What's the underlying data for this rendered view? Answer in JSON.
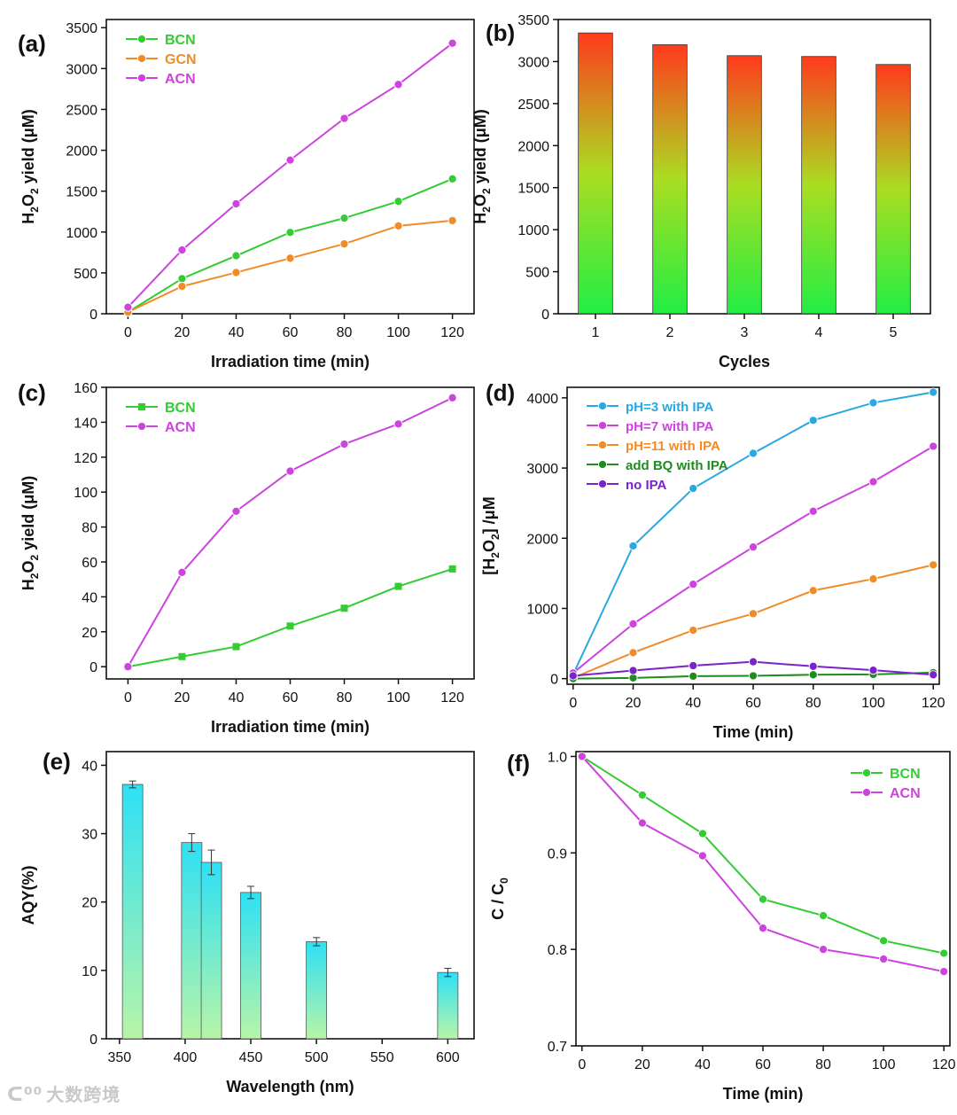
{
  "watermark": "大数跨境",
  "chart_data": [
    {
      "panel": "(a)",
      "type": "line",
      "xlabel": "Irradiation time (min)",
      "ylabel": "H2O2 yield (μM)",
      "xlim": [
        -8,
        128
      ],
      "ylim": [
        0,
        3600
      ],
      "xticks": [
        0,
        20,
        40,
        60,
        80,
        100,
        120
      ],
      "yticks": [
        0,
        500,
        1000,
        1500,
        2000,
        2500,
        3000,
        3500
      ],
      "legend": "top-left",
      "series": [
        {
          "name": "BCN",
          "color": "#33cc33",
          "marker": "circle",
          "x": [
            0,
            20,
            40,
            60,
            80,
            100,
            120
          ],
          "y": [
            20,
            430,
            710,
            995,
            1170,
            1375,
            1650
          ]
        },
        {
          "name": "GCN",
          "color": "#f08c28",
          "marker": "circle",
          "x": [
            0,
            20,
            40,
            60,
            80,
            100,
            120
          ],
          "y": [
            20,
            335,
            505,
            680,
            855,
            1075,
            1140
          ]
        },
        {
          "name": "ACN",
          "color": "#cc44dd",
          "marker": "circle",
          "x": [
            0,
            20,
            40,
            60,
            80,
            100,
            120
          ],
          "y": [
            80,
            780,
            1345,
            1880,
            2390,
            2805,
            3310
          ]
        }
      ]
    },
    {
      "panel": "(b)",
      "type": "bar",
      "xlabel": "Cycles",
      "ylabel": "H2O2 yield (μM)",
      "ylim": [
        0,
        3500
      ],
      "yticks": [
        0,
        500,
        1000,
        1500,
        2000,
        2500,
        3000,
        3500
      ],
      "categories": [
        "1",
        "2",
        "3",
        "4",
        "5"
      ],
      "values": [
        3340,
        3200,
        3070,
        3060,
        2965
      ],
      "gradient": [
        "#ff3a1c",
        "#aadd22",
        "#22ee44"
      ]
    },
    {
      "panel": "(c)",
      "type": "line",
      "xlabel": "Irradiation time (min)",
      "ylabel": "H2O2 yield (μM)",
      "xlim": [
        -8,
        128
      ],
      "ylim": [
        -7,
        160
      ],
      "xticks": [
        0,
        20,
        40,
        60,
        80,
        100,
        120
      ],
      "yticks": [
        0,
        20,
        40,
        60,
        80,
        100,
        120,
        140,
        160
      ],
      "legend": "top-left",
      "series": [
        {
          "name": "BCN",
          "color": "#33cc33",
          "marker": "square",
          "x": [
            0,
            20,
            40,
            60,
            80,
            100,
            120
          ],
          "y": [
            0,
            5.8,
            11.5,
            23.3,
            33.5,
            46,
            56
          ]
        },
        {
          "name": "ACN",
          "color": "#cc44dd",
          "marker": "circle",
          "x": [
            0,
            20,
            40,
            60,
            80,
            100,
            120
          ],
          "y": [
            0,
            54,
            89,
            112,
            127.5,
            139,
            154
          ]
        }
      ]
    },
    {
      "panel": "(d)",
      "type": "line",
      "xlabel": "Time (min)",
      "ylabel": "[H2O2] /μM",
      "xlim": [
        -2,
        122
      ],
      "ylim": [
        -80,
        4150
      ],
      "xticks": [
        0,
        20,
        40,
        60,
        80,
        100,
        120
      ],
      "yticks": [
        0,
        1000,
        2000,
        3000,
        4000
      ],
      "legend": "top-left",
      "series": [
        {
          "name": "pH=3 with IPA",
          "color": "#2aa8e0",
          "marker": "circle",
          "x": [
            0,
            20,
            40,
            60,
            80,
            100,
            120
          ],
          "y": [
            60,
            1890,
            2710,
            3210,
            3680,
            3930,
            4080
          ]
        },
        {
          "name": "pH=7 with IPA",
          "color": "#cc44dd",
          "marker": "circle",
          "x": [
            0,
            20,
            40,
            60,
            80,
            100,
            120
          ],
          "y": [
            80,
            780,
            1345,
            1875,
            2385,
            2805,
            3310
          ]
        },
        {
          "name": "pH=11 with IPA",
          "color": "#f08c28",
          "marker": "circle",
          "x": [
            0,
            20,
            40,
            60,
            80,
            100,
            120
          ],
          "y": [
            10,
            370,
            690,
            925,
            1255,
            1420,
            1620
          ]
        },
        {
          "name": "add BQ with IPA",
          "color": "#1e8c1e",
          "marker": "circle",
          "x": [
            0,
            20,
            40,
            60,
            80,
            100,
            120
          ],
          "y": [
            0,
            10,
            35,
            40,
            55,
            60,
            85
          ]
        },
        {
          "name": "no IPA",
          "color": "#7a22cc",
          "marker": "circle",
          "x": [
            0,
            20,
            40,
            60,
            80,
            100,
            120
          ],
          "y": [
            40,
            115,
            185,
            240,
            175,
            120,
            55
          ]
        }
      ]
    },
    {
      "panel": "(e)",
      "type": "bar",
      "xlabel": "Wavelength (nm)",
      "ylabel": "AQY(%)",
      "xlim": [
        340,
        620
      ],
      "ylim": [
        0,
        42
      ],
      "xticks": [
        350,
        400,
        450,
        500,
        550,
        600
      ],
      "yticks": [
        0,
        10,
        20,
        30,
        40
      ],
      "x": [
        360,
        405,
        420,
        450,
        500,
        600
      ],
      "values": [
        37.2,
        28.7,
        25.8,
        21.4,
        14.2,
        9.7
      ],
      "errors": [
        0.5,
        1.3,
        1.8,
        0.9,
        0.6,
        0.6
      ],
      "gradient": [
        "#2ee0f5",
        "#b8f5a8"
      ]
    },
    {
      "panel": "(f)",
      "type": "line",
      "xlabel": "Time (min)",
      "ylabel": "C / C0",
      "xlim": [
        -2,
        122
      ],
      "ylim": [
        0.7,
        1.005
      ],
      "xticks": [
        0,
        20,
        40,
        60,
        80,
        100,
        120
      ],
      "yticks": [
        0.7,
        0.8,
        0.9,
        1.0
      ],
      "ytick_labels": [
        "0.7",
        "0.8",
        "0.9",
        "1.0"
      ],
      "legend": "top-right",
      "series": [
        {
          "name": "BCN",
          "color": "#33cc33",
          "marker": "circle",
          "x": [
            0,
            20,
            40,
            60,
            80,
            100,
            120
          ],
          "y": [
            1.0,
            0.96,
            0.92,
            0.852,
            0.835,
            0.809,
            0.796
          ]
        },
        {
          "name": "ACN",
          "color": "#cc44dd",
          "marker": "circle",
          "x": [
            0,
            20,
            40,
            60,
            80,
            100,
            120
          ],
          "y": [
            1.0,
            0.931,
            0.897,
            0.822,
            0.8,
            0.79,
            0.777
          ]
        }
      ]
    }
  ]
}
